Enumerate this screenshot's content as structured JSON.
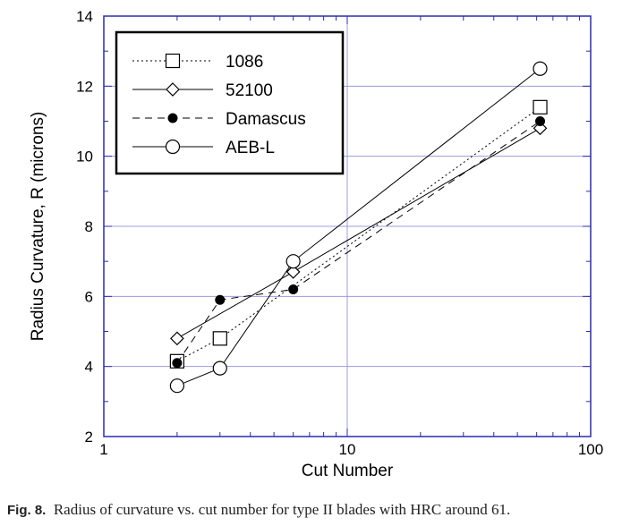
{
  "chart_data": {
    "type": "line",
    "title": "",
    "xlabel": "Cut Number",
    "ylabel": "Radius Curvature, R (microns)",
    "xscale": "log",
    "xlim": [
      1,
      100
    ],
    "ylim": [
      2,
      14
    ],
    "xticks": [
      1,
      10,
      100
    ],
    "xtick_labels": [
      "1",
      "10",
      "100"
    ],
    "yticks": [
      2,
      4,
      6,
      8,
      10,
      12,
      14
    ],
    "ytick_labels": [
      "2",
      "4",
      "6",
      "8",
      "10",
      "12",
      "14"
    ],
    "grid": true,
    "legend_position": "top-left",
    "series": [
      {
        "name": "1086",
        "marker": "open-square",
        "line": "dotted",
        "x": [
          2,
          3,
          62
        ],
        "y": [
          4.15,
          4.8,
          11.4
        ]
      },
      {
        "name": "52100",
        "marker": "open-diamond",
        "line": "solid",
        "x": [
          2,
          6,
          62
        ],
        "y": [
          4.8,
          6.7,
          10.8
        ]
      },
      {
        "name": "Damascus",
        "marker": "filled-circle",
        "line": "dashed",
        "x": [
          2,
          3,
          6,
          62
        ],
        "y": [
          4.1,
          5.9,
          6.2,
          11.0
        ]
      },
      {
        "name": "AEB-L",
        "marker": "open-circle",
        "line": "solid",
        "x": [
          2,
          3,
          6,
          62
        ],
        "y": [
          3.45,
          3.95,
          7.0,
          12.5
        ]
      }
    ]
  },
  "caption": {
    "fig_label": "Fig. 8.",
    "text": "Radius of curvature vs. cut number for type II blades with HRC around 61."
  },
  "colors": {
    "grid": "#9c9cd8",
    "frame": "#2b2bb0",
    "ink": "#000000"
  }
}
